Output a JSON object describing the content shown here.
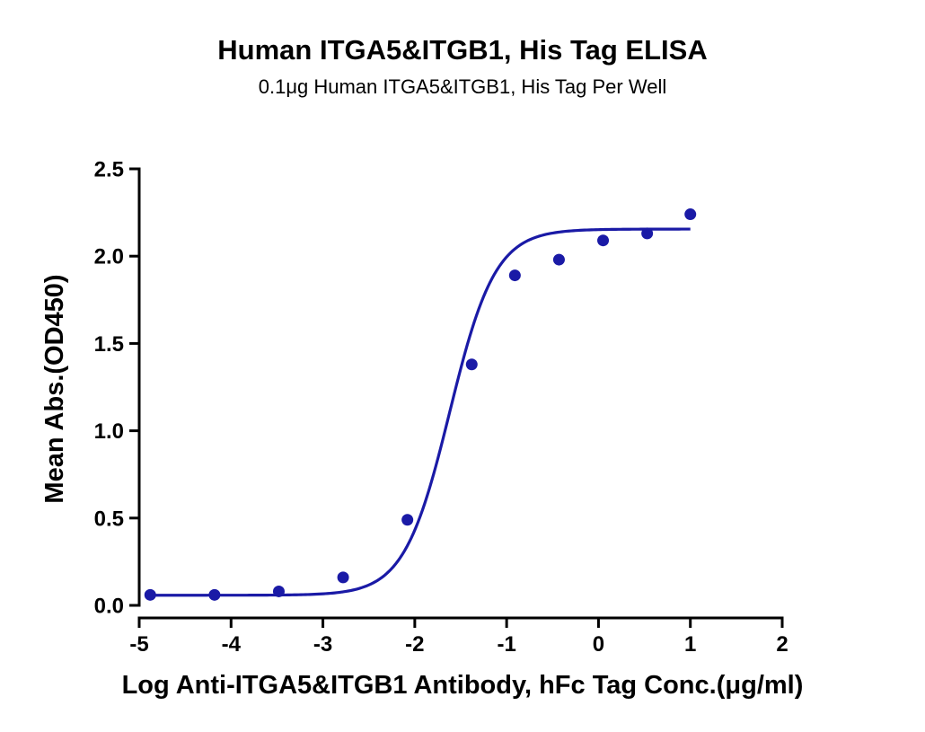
{
  "chart_data": {
    "type": "scatter",
    "title": "Human ITGA5&ITGB1, His Tag ELISA",
    "subtitle": "0.1μg Human ITGA5&ITGB1, His Tag Per Well",
    "xlabel": "Log Anti-ITGA5&ITGB1 Antibody, hFc Tag Conc.(μg/ml)",
    "ylabel": "Mean Abs.(OD450)",
    "xlim": [
      -5,
      2
    ],
    "ylim": [
      0,
      2.5
    ],
    "xticks": [
      "-5",
      "-4",
      "-3",
      "-2",
      "-1",
      "0",
      "1",
      "2"
    ],
    "yticks": [
      "0.0",
      "0.5",
      "1.0",
      "1.5",
      "2.0",
      "2.5"
    ],
    "grid": false,
    "color": "#1a1aa6",
    "series": [
      {
        "x": [
          -4.88,
          -4.18,
          -3.48,
          -2.78,
          -2.08,
          -1.38,
          -0.91,
          -0.43,
          0.05,
          0.53,
          1.0
        ],
        "y": [
          0.06,
          0.06,
          0.08,
          0.16,
          0.49,
          1.38,
          1.89,
          1.98,
          2.09,
          2.13,
          2.24
        ]
      }
    ],
    "fit_curve": {
      "model": "4PL",
      "bottom": 0.058,
      "top": 2.155,
      "logEC50": -1.62,
      "hill": 1.75,
      "x_range": [
        -4.88,
        1.0
      ]
    }
  }
}
